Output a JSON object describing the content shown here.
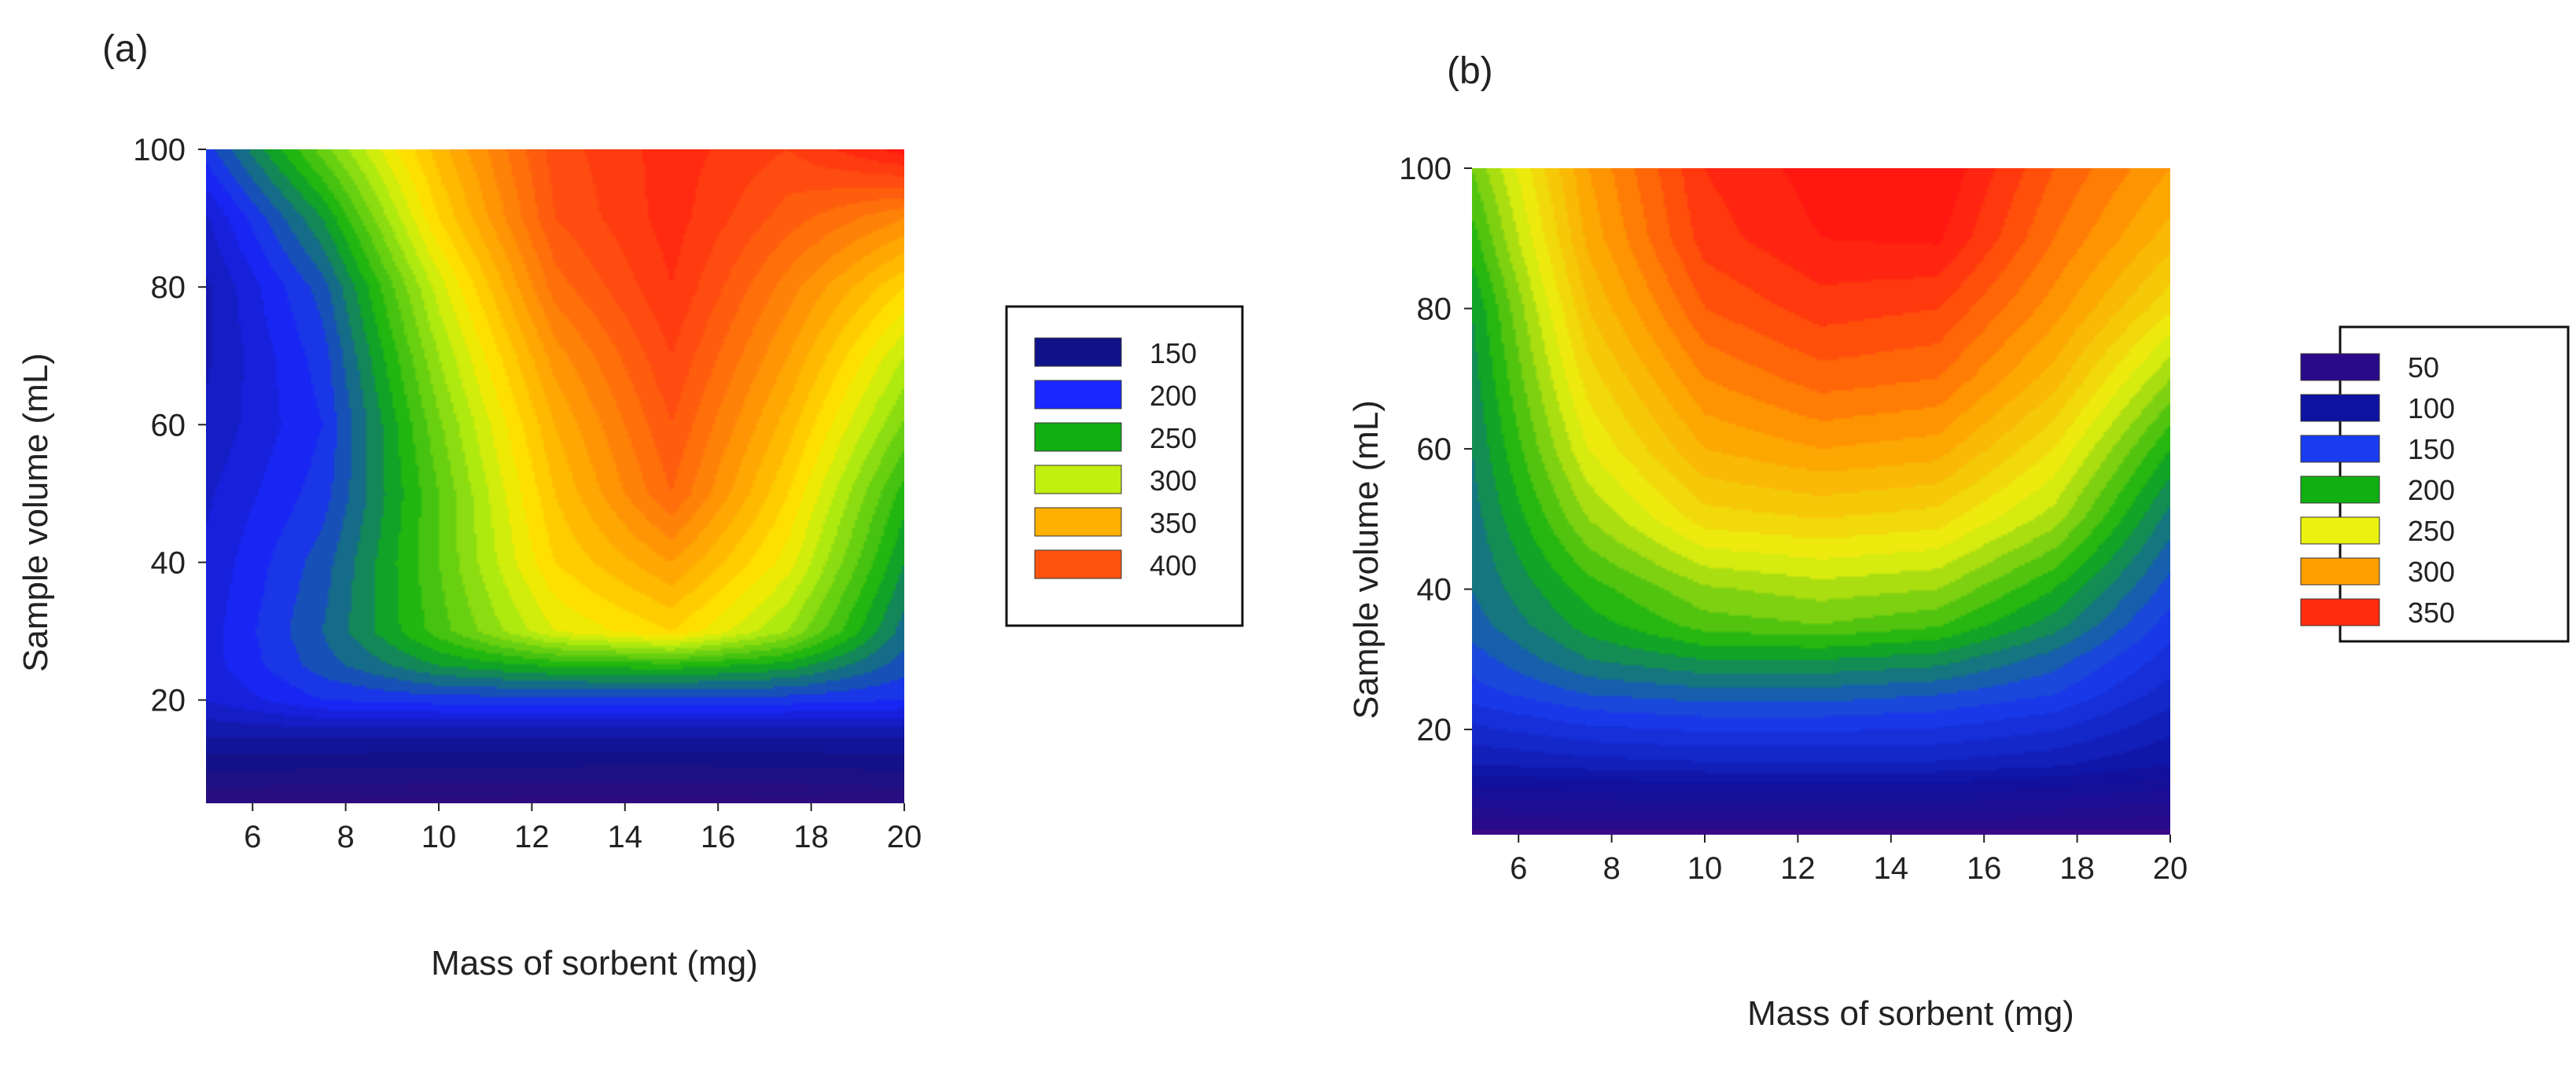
{
  "chart_data": [
    {
      "panel_label": "(a)",
      "type": "heatmap",
      "subtype": "filled-contour",
      "xlabel": "Mass of sorbent (mg)",
      "ylabel": "Sample volume (mL)",
      "xlim": [
        5,
        20
      ],
      "ylim": [
        5,
        100
      ],
      "xticks": [
        "6",
        "8",
        "10",
        "12",
        "14",
        "16",
        "18",
        "20"
      ],
      "yticks": [
        "20",
        "40",
        "60",
        "80",
        "100"
      ],
      "legend": {
        "position": "right",
        "entries": [
          {
            "label": "150",
            "color": "#10128a"
          },
          {
            "label": "200",
            "color": "#1a28ff"
          },
          {
            "label": "250",
            "color": "#10b010"
          },
          {
            "label": "300",
            "color": "#c0ef10"
          },
          {
            "label": "350",
            "color": "#ffb000"
          },
          {
            "label": "400",
            "color": "#ff5410"
          }
        ]
      },
      "color_scale": {
        "stops": [
          {
            "value": 100,
            "color": "#3b0a78"
          },
          {
            "value": 150,
            "color": "#10128a"
          },
          {
            "value": 200,
            "color": "#1a28ff"
          },
          {
            "value": 250,
            "color": "#10b010"
          },
          {
            "value": 300,
            "color": "#c0ef10"
          },
          {
            "value": 320,
            "color": "#ffe800"
          },
          {
            "value": 350,
            "color": "#ffb000"
          },
          {
            "value": 400,
            "color": "#ff5410"
          },
          {
            "value": 440,
            "color": "#ff1010"
          }
        ],
        "band_step": 10
      },
      "surface": {
        "x": [
          5,
          7.5,
          10,
          12.5,
          15,
          17.5,
          20
        ],
        "y": [
          5,
          15,
          20,
          25,
          30,
          40,
          50,
          60,
          70,
          80,
          90,
          100
        ],
        "z": [
          [
            120,
            118,
            116,
            115,
            114,
            116,
            120
          ],
          [
            162,
            162,
            162,
            162,
            162,
            162,
            162
          ],
          [
            180,
            200,
            205,
            205,
            205,
            205,
            200
          ],
          [
            185,
            215,
            240,
            252,
            255,
            245,
            215
          ],
          [
            185,
            220,
            265,
            310,
            330,
            290,
            225
          ],
          [
            182,
            215,
            270,
            330,
            360,
            315,
            240
          ],
          [
            178,
            205,
            270,
            340,
            390,
            330,
            255
          ],
          [
            172,
            200,
            278,
            350,
            400,
            345,
            278
          ],
          [
            168,
            205,
            290,
            365,
            410,
            360,
            300
          ],
          [
            168,
            215,
            305,
            385,
            420,
            375,
            330
          ],
          [
            178,
            240,
            330,
            400,
            425,
            395,
            370
          ],
          [
            205,
            275,
            345,
            405,
            425,
            410,
            435
          ]
        ]
      }
    },
    {
      "panel_label": "(b)",
      "type": "heatmap",
      "subtype": "filled-contour",
      "xlabel": "Mass of sorbent (mg)",
      "ylabel": "Sample volume (mL)",
      "xlim": [
        5,
        20
      ],
      "ylim": [
        5,
        100
      ],
      "xticks": [
        "6",
        "8",
        "10",
        "12",
        "14",
        "16",
        "18",
        "20"
      ],
      "yticks": [
        "20",
        "40",
        "60",
        "80",
        "100"
      ],
      "legend": {
        "position": "right",
        "entries": [
          {
            "label": "50",
            "color": "#2a0a88"
          },
          {
            "label": "100",
            "color": "#0e12a0"
          },
          {
            "label": "150",
            "color": "#1a3cf0"
          },
          {
            "label": "200",
            "color": "#10b010"
          },
          {
            "label": "250",
            "color": "#ecf210"
          },
          {
            "label": "300",
            "color": "#ffa000"
          },
          {
            "label": "350",
            "color": "#ff2c10"
          }
        ]
      },
      "color_scale": {
        "stops": [
          {
            "value": 40,
            "color": "#4a0a8a"
          },
          {
            "value": 50,
            "color": "#2a0a88"
          },
          {
            "value": 100,
            "color": "#0e12a0"
          },
          {
            "value": 150,
            "color": "#1a3cf0"
          },
          {
            "value": 200,
            "color": "#10b010"
          },
          {
            "value": 250,
            "color": "#ecf210"
          },
          {
            "value": 300,
            "color": "#ffa000"
          },
          {
            "value": 350,
            "color": "#ff2c10"
          },
          {
            "value": 370,
            "color": "#ff1010"
          }
        ],
        "band_step": 10
      },
      "surface": {
        "x": [
          5,
          7.5,
          10,
          12.5,
          15,
          17.5,
          20
        ],
        "y": [
          5,
          15,
          25,
          30,
          35,
          40,
          50,
          60,
          70,
          80,
          90,
          100
        ],
        "z": [
          [
            45,
            45,
            45,
            45,
            45,
            45,
            45
          ],
          [
            110,
            115,
            118,
            118,
            118,
            112,
            100
          ],
          [
            145,
            160,
            165,
            165,
            160,
            150,
            125
          ],
          [
            155,
            180,
            190,
            190,
            185,
            165,
            135
          ],
          [
            165,
            195,
            215,
            220,
            212,
            185,
            145
          ],
          [
            170,
            205,
            228,
            235,
            230,
            200,
            155
          ],
          [
            175,
            230,
            265,
            270,
            265,
            235,
            175
          ],
          [
            180,
            250,
            290,
            300,
            295,
            260,
            200
          ],
          [
            185,
            265,
            310,
            325,
            320,
            285,
            230
          ],
          [
            190,
            280,
            330,
            345,
            340,
            305,
            262
          ],
          [
            205,
            293,
            345,
            360,
            362,
            320,
            285
          ],
          [
            220,
            300,
            350,
            365,
            370,
            330,
            300
          ]
        ]
      }
    }
  ]
}
